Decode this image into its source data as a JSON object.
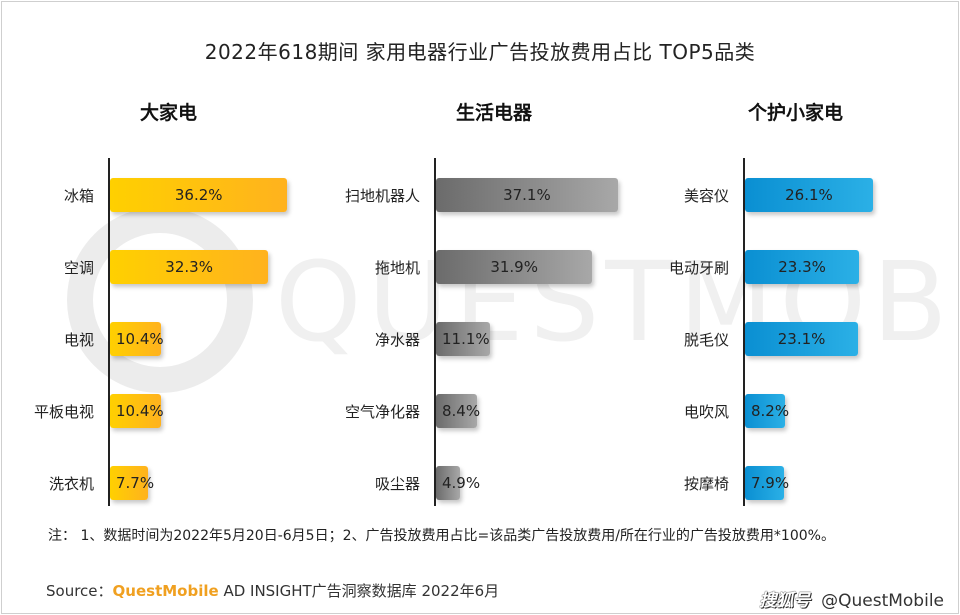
{
  "title": "2022年618期间 家用电器行业广告投放费用占比 TOP5品类",
  "watermark": "QUESTMOBILE",
  "chart_data": [
    {
      "type": "bar",
      "title": "大家电",
      "categories": [
        "冰箱",
        "空调",
        "电视",
        "平板电视",
        "洗衣机"
      ],
      "values": [
        36.2,
        32.3,
        10.4,
        10.4,
        7.7
      ],
      "labels": [
        "36.2%",
        "32.3%",
        "10.4%",
        "10.4%",
        "7.7%"
      ],
      "color": "#FFC21A",
      "orientation": "horizontal"
    },
    {
      "type": "bar",
      "title": "生活电器",
      "categories": [
        "扫地机器人",
        "拖地机",
        "净水器",
        "空气净化器",
        "吸尘器"
      ],
      "values": [
        37.1,
        31.9,
        11.1,
        8.4,
        4.9
      ],
      "labels": [
        "37.1%",
        "31.9%",
        "11.1%",
        "8.4%",
        "4.9%"
      ],
      "color": "#8a8a8a",
      "orientation": "horizontal"
    },
    {
      "type": "bar",
      "title": "个护小家电",
      "categories": [
        "美容仪",
        "电动牙刷",
        "脱毛仪",
        "电吹风",
        "按摩椅"
      ],
      "values": [
        26.1,
        23.3,
        23.1,
        8.2,
        7.9
      ],
      "labels": [
        "26.1%",
        "23.3%",
        "23.1%",
        "8.2%",
        "7.9%"
      ],
      "color": "#1E9ED8",
      "orientation": "horizontal"
    }
  ],
  "note": "注：  1、数据时间为2022年5月20日-6月5日；2、广告投放费用占比=该品类广告投放费用/所在行业的广告投放费用*100%。",
  "source": {
    "prefix": "Source：",
    "brand": "QuestMobile",
    "suffix": " AD INSIGHT广告洞察数据库 2022年6月"
  },
  "credit": {
    "logo": "搜狐号",
    "handle": "@QuestMobile"
  }
}
